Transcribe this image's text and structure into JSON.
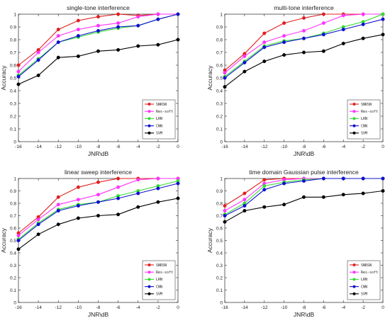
{
  "figure": {
    "colors": {
      "SNRSN": "#e02020",
      "Res-soft": "#ff33ff",
      "LRN": "#33dd33",
      "CNN": "#1010d0",
      "SVM": "#000000"
    }
  },
  "chart_data": [
    {
      "type": "line",
      "title": "single-tone interference",
      "xlabel": "JNR\\dB",
      "ylabel": "Accuracy",
      "x": [
        -16,
        -14,
        -12,
        -10,
        -8,
        -6,
        -4,
        -2,
        0
      ],
      "xlim": [
        -16,
        0
      ],
      "ylim": [
        0,
        1
      ],
      "x_ticks": [
        -16,
        -14,
        -12,
        -10,
        -8,
        -6,
        -4,
        -2,
        0
      ],
      "y_ticks": [
        0,
        0.1,
        0.2,
        0.3,
        0.4,
        0.5,
        0.6,
        0.7,
        0.8,
        0.9,
        1
      ],
      "grid": false,
      "legend_position": "lower-right",
      "series": [
        {
          "name": "SNRSN",
          "values": [
            0.6,
            0.72,
            0.88,
            0.95,
            0.98,
            1.0,
            0.99,
            1.0,
            1.0
          ]
        },
        {
          "name": "Res-soft",
          "values": [
            0.55,
            0.7,
            0.83,
            0.88,
            0.91,
            0.93,
            0.98,
            1.0,
            1.0
          ]
        },
        {
          "name": "LRN",
          "values": [
            0.52,
            0.65,
            0.78,
            0.82,
            0.86,
            0.89,
            0.91,
            0.96,
            1.0
          ]
        },
        {
          "name": "CNN",
          "values": [
            0.51,
            0.64,
            0.78,
            0.83,
            0.87,
            0.9,
            0.91,
            0.96,
            1.0
          ]
        },
        {
          "name": "SVM",
          "values": [
            0.45,
            0.52,
            0.66,
            0.67,
            0.71,
            0.72,
            0.75,
            0.76,
            0.8
          ]
        }
      ]
    },
    {
      "type": "line",
      "title": "multi-tone interference",
      "xlabel": "JNR\\dB",
      "ylabel": "Accuracy",
      "x": [
        -16,
        -14,
        -12,
        -10,
        -8,
        -6,
        -4,
        -2,
        0
      ],
      "xlim": [
        -16,
        0
      ],
      "ylim": [
        0,
        1
      ],
      "x_ticks": [
        -16,
        -14,
        -12,
        -10,
        -8,
        -6,
        -4,
        -2,
        0
      ],
      "y_ticks": [
        0,
        0.1,
        0.2,
        0.3,
        0.4,
        0.5,
        0.6,
        0.7,
        0.8,
        0.9,
        1
      ],
      "grid": false,
      "legend_position": "lower-right",
      "series": [
        {
          "name": "SNRSN",
          "values": [
            0.56,
            0.69,
            0.85,
            0.93,
            0.97,
            1.0,
            1.0,
            1.0,
            1.0
          ]
        },
        {
          "name": "Res-soft",
          "values": [
            0.54,
            0.67,
            0.78,
            0.83,
            0.87,
            0.93,
            0.99,
            1.0,
            1.0
          ]
        },
        {
          "name": "LRN",
          "values": [
            0.51,
            0.63,
            0.75,
            0.79,
            0.81,
            0.85,
            0.9,
            0.94,
            1.0
          ]
        },
        {
          "name": "CNN",
          "values": [
            0.5,
            0.62,
            0.74,
            0.78,
            0.81,
            0.84,
            0.88,
            0.92,
            0.96
          ]
        },
        {
          "name": "SVM",
          "values": [
            0.43,
            0.55,
            0.63,
            0.68,
            0.7,
            0.71,
            0.77,
            0.81,
            0.84
          ]
        }
      ]
    },
    {
      "type": "line",
      "title": "linear sweep interference",
      "xlabel": "JNR\\dB",
      "ylabel": "Accuracy",
      "x": [
        -16,
        -14,
        -12,
        -10,
        -8,
        -6,
        -4,
        -2,
        0
      ],
      "xlim": [
        -16,
        0
      ],
      "ylim": [
        0,
        1
      ],
      "x_ticks": [
        -16,
        -14,
        -12,
        -10,
        -8,
        -6,
        -4,
        -2,
        0
      ],
      "y_ticks": [
        0,
        0.1,
        0.2,
        0.3,
        0.4,
        0.5,
        0.6,
        0.7,
        0.8,
        0.9,
        1
      ],
      "grid": false,
      "legend_position": "lower-right",
      "series": [
        {
          "name": "SNRSN",
          "values": [
            0.56,
            0.69,
            0.85,
            0.93,
            0.97,
            1.0,
            1.0,
            1.0,
            1.0
          ]
        },
        {
          "name": "Res-soft",
          "values": [
            0.54,
            0.67,
            0.79,
            0.83,
            0.87,
            0.93,
            0.99,
            1.0,
            1.0
          ]
        },
        {
          "name": "LRN",
          "values": [
            0.51,
            0.64,
            0.75,
            0.79,
            0.81,
            0.86,
            0.9,
            0.94,
            0.98
          ]
        },
        {
          "name": "CNN",
          "values": [
            0.5,
            0.63,
            0.74,
            0.78,
            0.81,
            0.84,
            0.88,
            0.92,
            0.96
          ]
        },
        {
          "name": "SVM",
          "values": [
            0.43,
            0.55,
            0.63,
            0.68,
            0.7,
            0.71,
            0.77,
            0.81,
            0.84
          ]
        }
      ]
    },
    {
      "type": "line",
      "title": "time domain Gaussian pulse interference",
      "xlabel": "JNR\\dB",
      "ylabel": "Accuracy",
      "x": [
        -16,
        -14,
        -12,
        -10,
        -8,
        -6,
        -4,
        -2,
        0
      ],
      "xlim": [
        -16,
        0
      ],
      "ylim": [
        0,
        1
      ],
      "x_ticks": [
        -16,
        -14,
        -12,
        -10,
        -8,
        -6,
        -4,
        -2,
        0
      ],
      "y_ticks": [
        0,
        0.1,
        0.2,
        0.3,
        0.4,
        0.5,
        0.6,
        0.7,
        0.8,
        0.9,
        1
      ],
      "grid": false,
      "legend_position": "lower-right",
      "series": [
        {
          "name": "SNRSN",
          "values": [
            0.78,
            0.88,
            0.99,
            1.0,
            1.0,
            1.0,
            1.0,
            1.0,
            1.0
          ]
        },
        {
          "name": "Res-soft",
          "values": [
            0.74,
            0.83,
            0.96,
            0.99,
            1.0,
            1.0,
            1.0,
            1.0,
            1.0
          ]
        },
        {
          "name": "LRN",
          "values": [
            0.71,
            0.8,
            0.94,
            0.97,
            0.99,
            1.0,
            1.0,
            1.0,
            1.0
          ]
        },
        {
          "name": "CNN",
          "values": [
            0.7,
            0.78,
            0.91,
            0.96,
            0.98,
            1.0,
            1.0,
            1.0,
            1.0
          ]
        },
        {
          "name": "SVM",
          "values": [
            0.65,
            0.74,
            0.77,
            0.79,
            0.85,
            0.85,
            0.87,
            0.88,
            0.9
          ]
        }
      ]
    }
  ]
}
